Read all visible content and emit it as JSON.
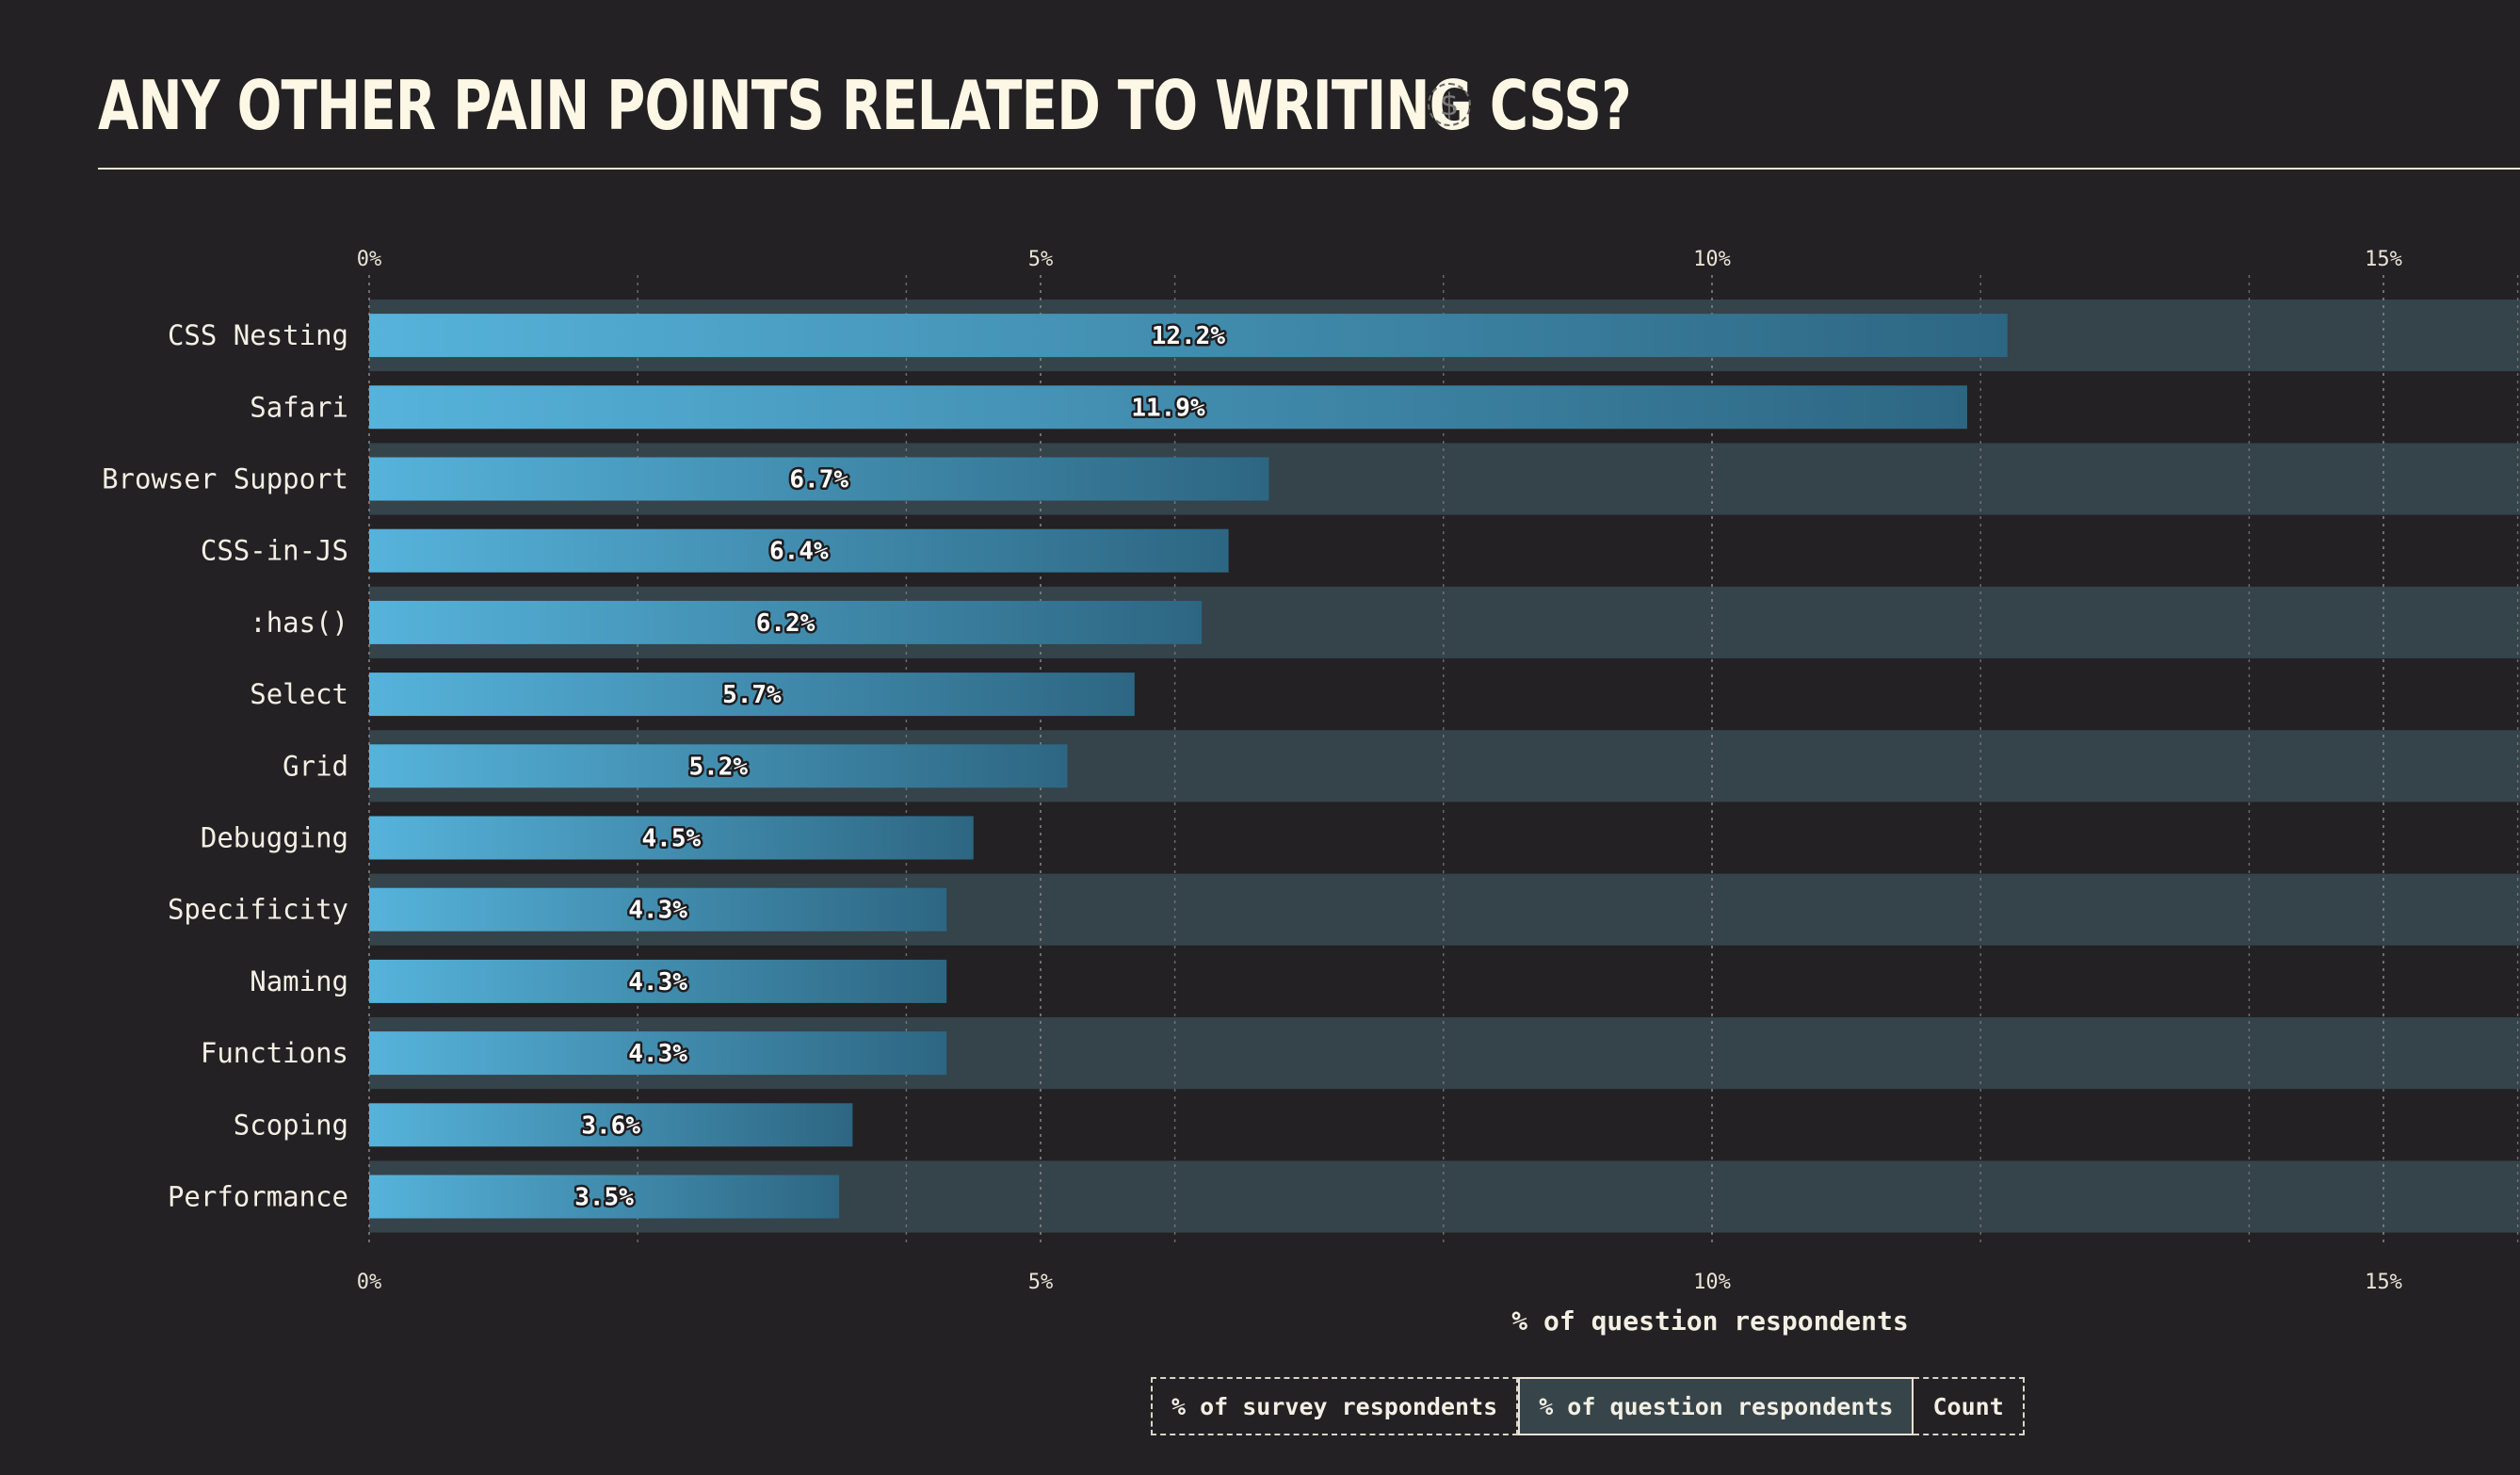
{
  "page": {
    "title": "ANY OTHER PAIN POINTS RELATED TO WRITING CSS?",
    "sponsor_icon": "$"
  },
  "colors": {
    "background": "#232123",
    "stripe": "#35434a",
    "bar_start": "#56b3db",
    "bar_end": "#2d6682",
    "text": "#f3efe4"
  },
  "chart_data": {
    "type": "bar",
    "orientation": "horizontal",
    "categories": [
      "CSS Nesting",
      "Safari",
      "Browser Support",
      "CSS-in-JS",
      ":has()",
      "Select",
      "Grid",
      "Debugging",
      "Specificity",
      "Naming",
      "Functions",
      "Scoping",
      "Performance"
    ],
    "values": [
      12.2,
      11.9,
      6.7,
      6.4,
      6.2,
      5.7,
      5.2,
      4.5,
      4.3,
      4.3,
      4.3,
      3.6,
      3.5
    ],
    "value_labels": [
      "12.2%",
      "11.9%",
      "6.7%",
      "6.4%",
      "6.2%",
      "5.7%",
      "5.2%",
      "4.5%",
      "4.3%",
      "4.3%",
      "4.3%",
      "3.6%",
      "3.5%"
    ],
    "xlim": [
      0,
      16
    ],
    "ticks": [
      0,
      5,
      10,
      15
    ],
    "tick_labels": [
      "0%",
      "5%",
      "10%",
      "15%"
    ],
    "xlabel": "% of question respondents",
    "grid": true
  },
  "units": {
    "options": [
      "% of survey respondents",
      "% of question respondents",
      "Count"
    ],
    "selected": "% of question respondents"
  }
}
